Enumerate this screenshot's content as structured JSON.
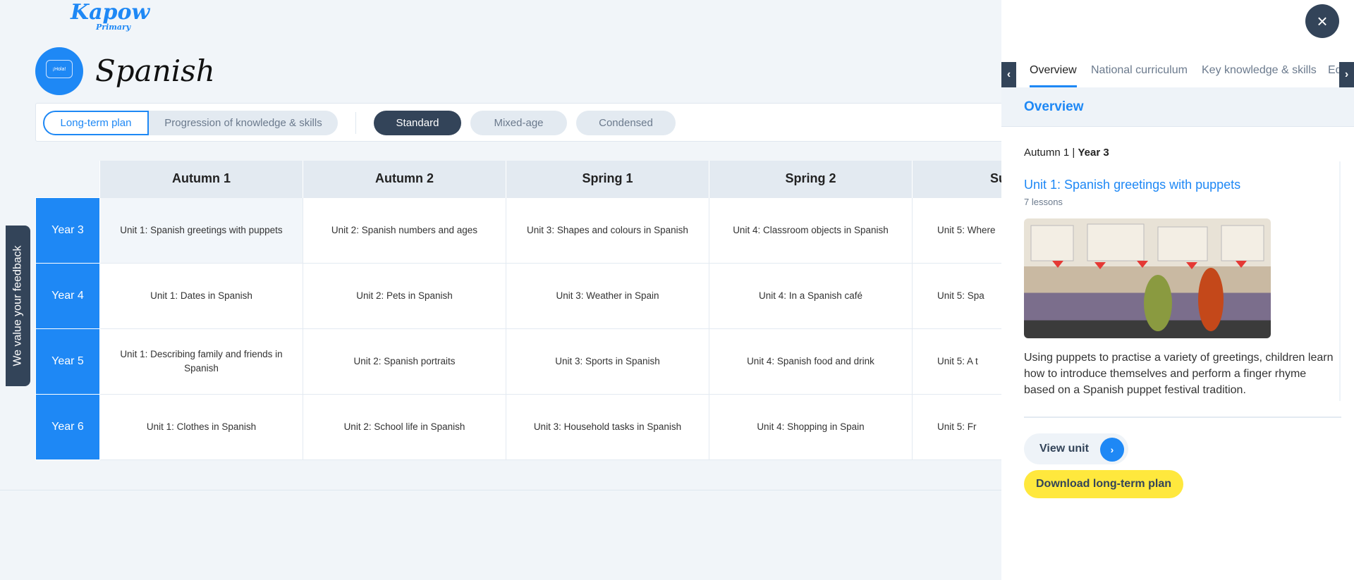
{
  "brand": {
    "logo_text": "Kapow",
    "logo_sub": "Primary"
  },
  "subject": {
    "title": "Spanish",
    "icon_text": "¡Hola!"
  },
  "toolbar": {
    "view_tabs": [
      "Long-term plan",
      "Progression of knowledge & skills"
    ],
    "plan_types": [
      "Standard",
      "Mixed-age",
      "Condensed"
    ],
    "active_view": "Long-term plan",
    "active_plan": "Standard"
  },
  "table": {
    "headers": [
      "Autumn 1",
      "Autumn 2",
      "Spring 1",
      "Spring 2",
      "Sur"
    ],
    "rows": [
      {
        "year": "Year 3",
        "cells": [
          "Unit 1: Spanish greetings with puppets",
          "Unit 2: Spanish numbers and ages",
          "Unit 3: Shapes and colours in Spanish",
          "Unit 4: Classroom objects in Spanish",
          "Unit 5: Where"
        ]
      },
      {
        "year": "Year 4",
        "cells": [
          "Unit 1: Dates in Spanish",
          "Unit 2: Pets in Spanish",
          "Unit 3: Weather in Spain",
          "Unit 4: In a Spanish café",
          "Unit 5: Spa"
        ]
      },
      {
        "year": "Year 5",
        "cells": [
          "Unit 1: Describing family and friends in Spanish",
          "Unit 2: Spanish portraits",
          "Unit 3: Sports in Spanish",
          "Unit 4: Spanish food and drink",
          "Unit 5: A t"
        ]
      },
      {
        "year": "Year 6",
        "cells": [
          "Unit 1: Clothes in Spanish",
          "Unit 2: School life in Spanish",
          "Unit 3: Household tasks in Spanish",
          "Unit 4: Shopping in Spain",
          "Unit 5: Fr"
        ]
      }
    ]
  },
  "feedback": {
    "label": "We value your feedback"
  },
  "panel": {
    "close_icon": "×",
    "tabs": [
      "Overview",
      "National curriculum",
      "Key knowledge & skills",
      "Eq"
    ],
    "section_title": "Overview",
    "term": "Autumn 1",
    "year": "Year 3",
    "unit_title": "Unit 1: Spanish greetings with puppets",
    "lessons": "7 lessons",
    "description": "Using puppets to practise a variety of greetings, children learn how to introduce themselves and perform a finger rhyme based on a Spanish puppet festival tradition.",
    "view_unit": "View unit",
    "download": "Download long-term plan"
  },
  "colors": {
    "accent": "#1e88f5",
    "dark": "#334459",
    "highlight": "#ffe83d"
  }
}
